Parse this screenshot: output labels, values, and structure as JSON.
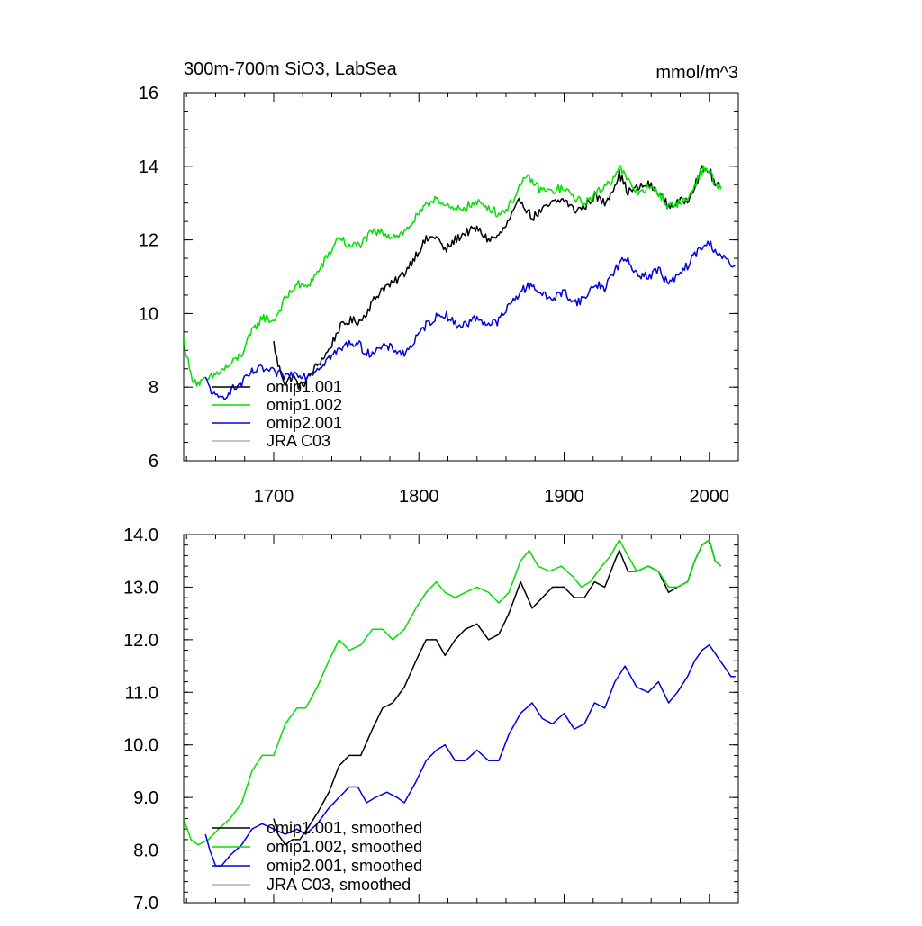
{
  "figure": {
    "colors": {
      "omip1_001": "#000000",
      "omip1_002": "#00e000",
      "omip2_001": "#0000e0",
      "jra_c03": "#b0b0b0"
    }
  },
  "chart_data": [
    {
      "type": "line",
      "title": "300m-700m SiO3, LabSea",
      "units": "mmol/m^3",
      "xlim": [
        1638,
        2020
      ],
      "ylim": [
        6,
        16
      ],
      "xticks": [
        1700,
        1800,
        1900,
        2000
      ],
      "xtick_labels": [
        "1700",
        "1800",
        "1900",
        "2000"
      ],
      "yticks": [
        6,
        8,
        10,
        12,
        14,
        16
      ],
      "ytick_labels": [
        "6",
        "8",
        "10",
        "12",
        "14",
        "16"
      ],
      "show_xtick_labels": true,
      "legend": [
        "omip1.001",
        "omip1.002",
        "omip2.001",
        "JRA C03"
      ],
      "noise": 0.12,
      "series": [
        {
          "name": "omip1.001",
          "color_key": "omip1_001",
          "x": [
            1700,
            1703,
            1708,
            1713,
            1718,
            1723,
            1730,
            1738,
            1745,
            1752,
            1760,
            1768,
            1775,
            1782,
            1790,
            1798,
            1805,
            1812,
            1818,
            1825,
            1832,
            1840,
            1848,
            1855,
            1862,
            1870,
            1878,
            1885,
            1892,
            1900,
            1907,
            1914,
            1921,
            1928,
            1935,
            1938,
            1944,
            1950,
            1958,
            1965,
            1972,
            1978,
            1985,
            1990,
            1995,
            2000,
            2004,
            2008
          ],
          "y": [
            9.2,
            8.6,
            8.1,
            8.3,
            8.0,
            8.2,
            8.6,
            9.0,
            9.6,
            9.8,
            9.8,
            10.3,
            10.7,
            10.8,
            11.1,
            11.6,
            12.0,
            12.1,
            11.7,
            12.0,
            12.2,
            12.3,
            12.0,
            12.1,
            12.5,
            13.1,
            12.6,
            12.8,
            13.0,
            13.1,
            12.8,
            12.9,
            13.2,
            13.0,
            13.5,
            13.8,
            13.3,
            13.4,
            13.5,
            13.3,
            12.9,
            13.0,
            13.1,
            13.5,
            13.9,
            13.9,
            13.5,
            13.4
          ]
        },
        {
          "name": "omip1.002",
          "color_key": "omip1_002",
          "x": [
            1638,
            1643,
            1648,
            1655,
            1662,
            1670,
            1678,
            1685,
            1692,
            1700,
            1708,
            1716,
            1722,
            1730,
            1738,
            1745,
            1752,
            1760,
            1768,
            1775,
            1782,
            1790,
            1798,
            1805,
            1812,
            1818,
            1825,
            1832,
            1840,
            1848,
            1855,
            1862,
            1870,
            1876,
            1882,
            1890,
            1898,
            1906,
            1912,
            1918,
            1926,
            1932,
            1938,
            1944,
            1950,
            1958,
            1965,
            1972,
            1978,
            1985,
            1990,
            1995,
            2000,
            2004,
            2008
          ],
          "y": [
            9.3,
            8.3,
            8.1,
            8.2,
            8.4,
            8.6,
            8.9,
            9.5,
            9.9,
            9.8,
            10.4,
            10.8,
            10.7,
            11.1,
            11.6,
            12.1,
            11.8,
            11.9,
            12.2,
            12.2,
            12.1,
            12.2,
            12.6,
            12.9,
            13.2,
            12.9,
            12.8,
            12.9,
            13.0,
            12.9,
            12.7,
            12.9,
            13.5,
            13.7,
            13.4,
            13.3,
            13.4,
            13.2,
            13.0,
            13.1,
            13.4,
            13.6,
            14.0,
            13.6,
            13.3,
            13.4,
            13.3,
            12.9,
            13.0,
            13.1,
            13.5,
            13.9,
            13.9,
            13.5,
            13.4
          ]
        },
        {
          "name": "omip2.001",
          "color_key": "omip2_001",
          "x": [
            1653,
            1656,
            1660,
            1664,
            1670,
            1678,
            1685,
            1692,
            1700,
            1708,
            1716,
            1722,
            1730,
            1738,
            1745,
            1752,
            1758,
            1764,
            1770,
            1778,
            1785,
            1790,
            1798,
            1805,
            1812,
            1818,
            1825,
            1832,
            1840,
            1848,
            1855,
            1862,
            1870,
            1878,
            1885,
            1892,
            1900,
            1907,
            1914,
            1921,
            1928,
            1935,
            1942,
            1950,
            1958,
            1965,
            1972,
            1978,
            1985,
            1990,
            1995,
            2000,
            2005,
            2010,
            2015,
            2018
          ],
          "y": [
            8.2,
            8.0,
            7.7,
            7.7,
            7.9,
            8.1,
            8.4,
            8.5,
            8.4,
            8.3,
            8.4,
            8.3,
            8.5,
            8.8,
            9.0,
            9.2,
            9.2,
            8.9,
            9.0,
            9.1,
            9.0,
            8.9,
            9.3,
            9.7,
            9.9,
            10.0,
            9.7,
            9.7,
            9.9,
            9.7,
            9.8,
            10.2,
            10.6,
            10.8,
            10.5,
            10.4,
            10.6,
            10.3,
            10.4,
            10.8,
            10.7,
            11.2,
            11.5,
            11.1,
            11.0,
            11.2,
            10.8,
            11.0,
            11.3,
            11.6,
            11.8,
            11.9,
            11.7,
            11.5,
            11.3,
            11.3
          ]
        },
        {
          "name": "JRA C03",
          "color_key": "jra_c03",
          "x": [],
          "y": []
        }
      ]
    },
    {
      "type": "line",
      "title": "",
      "units": "",
      "xlim": [
        1638,
        2020
      ],
      "ylim": [
        7,
        14
      ],
      "xticks": [
        1700,
        1800,
        1900,
        2000
      ],
      "xtick_labels": [],
      "yticks": [
        7,
        8,
        9,
        10,
        11,
        12,
        13,
        14
      ],
      "ytick_labels": [
        "7.0",
        "8.0",
        "9.0",
        "10.0",
        "11.0",
        "12.0",
        "13.0",
        "14.0"
      ],
      "show_xtick_labels": false,
      "legend": [
        "omip1.001, smoothed",
        "omip1.002, smoothed",
        "omip2.001, smoothed",
        "JRA C03, smoothed"
      ],
      "noise": 0,
      "series": [
        {
          "name": "omip1.001, smoothed",
          "color_key": "omip1_001",
          "x": [
            1700,
            1703,
            1708,
            1713,
            1718,
            1723,
            1730,
            1738,
            1745,
            1752,
            1760,
            1768,
            1775,
            1782,
            1790,
            1798,
            1805,
            1812,
            1818,
            1825,
            1832,
            1840,
            1848,
            1855,
            1862,
            1870,
            1878,
            1885,
            1892,
            1900,
            1907,
            1914,
            1921,
            1928,
            1935,
            1938,
            1944,
            1950,
            1958,
            1965,
            1972,
            1978,
            1985,
            1990,
            1995,
            2000,
            2004,
            2008
          ],
          "y": [
            8.6,
            8.3,
            8.1,
            8.2,
            8.2,
            8.4,
            8.7,
            9.1,
            9.6,
            9.8,
            9.8,
            10.3,
            10.7,
            10.8,
            11.1,
            11.6,
            12.0,
            12.0,
            11.7,
            12.0,
            12.2,
            12.3,
            12.0,
            12.1,
            12.5,
            13.1,
            12.6,
            12.8,
            13.0,
            13.0,
            12.8,
            12.8,
            13.1,
            13.0,
            13.5,
            13.7,
            13.3,
            13.3,
            13.4,
            13.3,
            12.9,
            13.0,
            13.1,
            13.5,
            13.8,
            13.9,
            13.5,
            13.4
          ]
        },
        {
          "name": "omip1.002, smoothed",
          "color_key": "omip1_002",
          "x": [
            1638,
            1643,
            1648,
            1655,
            1662,
            1670,
            1678,
            1685,
            1692,
            1700,
            1708,
            1716,
            1722,
            1730,
            1738,
            1745,
            1752,
            1760,
            1768,
            1775,
            1782,
            1790,
            1798,
            1805,
            1812,
            1818,
            1825,
            1832,
            1840,
            1848,
            1855,
            1862,
            1870,
            1876,
            1882,
            1890,
            1898,
            1906,
            1912,
            1918,
            1926,
            1932,
            1938,
            1944,
            1950,
            1958,
            1965,
            1972,
            1978,
            1985,
            1990,
            1995,
            2000,
            2004,
            2008
          ],
          "y": [
            8.6,
            8.2,
            8.1,
            8.2,
            8.4,
            8.6,
            8.9,
            9.5,
            9.8,
            9.8,
            10.4,
            10.7,
            10.7,
            11.1,
            11.6,
            12.0,
            11.8,
            11.9,
            12.2,
            12.2,
            12.0,
            12.2,
            12.6,
            12.9,
            13.1,
            12.9,
            12.8,
            12.9,
            13.0,
            12.9,
            12.7,
            12.9,
            13.5,
            13.7,
            13.4,
            13.3,
            13.4,
            13.2,
            13.0,
            13.1,
            13.4,
            13.6,
            13.9,
            13.6,
            13.3,
            13.4,
            13.3,
            13.0,
            13.0,
            13.1,
            13.5,
            13.8,
            13.9,
            13.5,
            13.4
          ]
        },
        {
          "name": "omip2.001, smoothed",
          "color_key": "omip2_001",
          "x": [
            1653,
            1656,
            1660,
            1664,
            1670,
            1678,
            1685,
            1692,
            1700,
            1708,
            1716,
            1722,
            1730,
            1738,
            1745,
            1752,
            1758,
            1764,
            1770,
            1778,
            1785,
            1790,
            1798,
            1805,
            1812,
            1818,
            1825,
            1832,
            1840,
            1848,
            1855,
            1862,
            1870,
            1878,
            1885,
            1892,
            1900,
            1907,
            1914,
            1921,
            1928,
            1935,
            1942,
            1950,
            1958,
            1965,
            1972,
            1978,
            1985,
            1990,
            1995,
            2000,
            2005,
            2010,
            2015,
            2018
          ],
          "y": [
            8.3,
            8.0,
            7.7,
            7.7,
            7.9,
            8.1,
            8.4,
            8.5,
            8.4,
            8.3,
            8.4,
            8.3,
            8.5,
            8.8,
            9.0,
            9.2,
            9.2,
            8.9,
            9.0,
            9.1,
            9.0,
            8.9,
            9.3,
            9.7,
            9.9,
            10.0,
            9.7,
            9.7,
            9.9,
            9.7,
            9.7,
            10.2,
            10.6,
            10.8,
            10.5,
            10.4,
            10.6,
            10.3,
            10.4,
            10.8,
            10.7,
            11.2,
            11.5,
            11.1,
            11.0,
            11.2,
            10.8,
            11.0,
            11.3,
            11.6,
            11.8,
            11.9,
            11.7,
            11.5,
            11.3,
            11.3
          ]
        },
        {
          "name": "JRA C03, smoothed",
          "color_key": "jra_c03",
          "x": [],
          "y": []
        }
      ]
    }
  ]
}
